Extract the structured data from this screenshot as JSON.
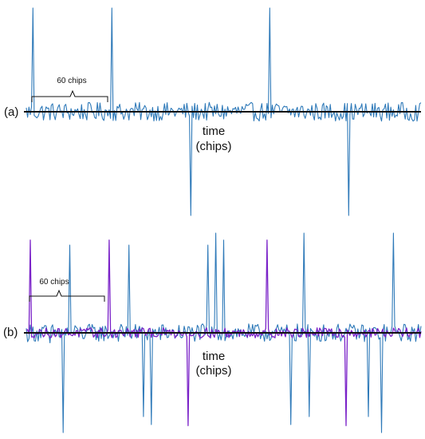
{
  "chart_data": [
    {
      "type": "line",
      "panel_label": "(a)",
      "xlabel_line1": "time",
      "xlabel_line2": "(chips)",
      "brace_label": "60 chips",
      "xlim": [
        0,
        300
      ],
      "ylim": [
        -1.0,
        1.0
      ],
      "series": [
        {
          "color": "#2f7ab9",
          "peaks": [
            {
              "x": 5,
              "y": 1.0
            },
            {
              "x": 65,
              "y": 1.0
            },
            {
              "x": 185,
              "y": 1.0
            },
            {
              "x": 125,
              "y": -1.0
            },
            {
              "x": 245,
              "y": -1.0
            }
          ]
        }
      ],
      "zero_line_color": "#111111"
    },
    {
      "type": "line",
      "panel_label": "(b)",
      "xlabel_line1": "time",
      "xlabel_line2": "(chips)",
      "brace_label": "60 chips",
      "xlim": [
        0,
        300
      ],
      "ylim": [
        -1.0,
        1.0
      ],
      "series": [
        {
          "color": "#2f7ab9",
          "peaks": [
            {
              "x": 33,
              "y": 0.88
            },
            {
              "x": 78,
              "y": 0.88
            },
            {
              "x": 138,
              "y": 0.88
            },
            {
              "x": 144,
              "y": 1.0
            },
            {
              "x": 150,
              "y": 0.93
            },
            {
              "x": 211,
              "y": 1.0
            },
            {
              "x": 279,
              "y": 1.0
            },
            {
              "x": 18,
              "y": -0.1
            },
            {
              "x": 28,
              "y": -1.0
            },
            {
              "x": 89,
              "y": -0.84
            },
            {
              "x": 95,
              "y": -0.92
            },
            {
              "x": 201,
              "y": -0.92
            },
            {
              "x": 215,
              "y": -0.84
            },
            {
              "x": 260,
              "y": -0.84
            },
            {
              "x": 270,
              "y": -1.0
            }
          ]
        },
        {
          "color": "#7a22c8",
          "peaks": [
            {
              "x": 3,
              "y": 0.93
            },
            {
              "x": 63,
              "y": 0.93
            },
            {
              "x": 183,
              "y": 0.93
            },
            {
              "x": 123,
              "y": -0.93
            },
            {
              "x": 243,
              "y": -0.93
            }
          ]
        }
      ],
      "zero_line_color": "#111111"
    }
  ]
}
